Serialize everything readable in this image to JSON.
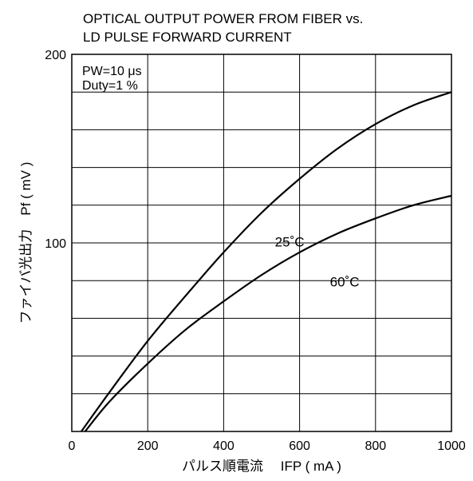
{
  "chart_data": {
    "type": "line",
    "title_lines": [
      "OPTICAL OUTPUT POWER FROM FIBER vs.",
      "LD PULSE FORWARD CURRENT"
    ],
    "conditions": [
      "PW=10 μs",
      "Duty=1 %"
    ],
    "xlabel": "パルス順電流　 IFP ( mA )",
    "ylabel": "ファイバ光出力　Pf ( mV )",
    "xlim": [
      0,
      1000
    ],
    "ylim": [
      0,
      200
    ],
    "x_ticks": [
      0,
      200,
      400,
      600,
      800,
      1000
    ],
    "x_tick_labels": [
      "0",
      "200",
      "400",
      "600",
      "800",
      "1000"
    ],
    "y_tick_labels_shown": [
      {
        "value": 100,
        "label": "100"
      },
      {
        "value": 200,
        "label": "200"
      }
    ],
    "y_gridlines": [
      20,
      40,
      60,
      80,
      100,
      120,
      140,
      160,
      180,
      200
    ],
    "grid": true,
    "series": [
      {
        "name": "25˚C",
        "x": [
          25,
          100,
          200,
          300,
          400,
          500,
          600,
          700,
          800,
          900,
          1000
        ],
        "y": [
          0,
          21,
          48,
          72,
          95,
          116,
          134,
          150,
          163,
          173,
          180
        ]
      },
      {
        "name": "60˚C",
        "x": [
          35,
          100,
          200,
          300,
          400,
          500,
          600,
          700,
          800,
          900,
          1000
        ],
        "y": [
          0,
          16,
          36,
          54,
          69,
          83,
          95,
          105,
          113,
          120,
          125
        ]
      }
    ],
    "series_labels": [
      {
        "text": "25˚C",
        "x": 535,
        "y": 98
      },
      {
        "text": "60˚C",
        "x": 680,
        "y": 77
      }
    ]
  }
}
